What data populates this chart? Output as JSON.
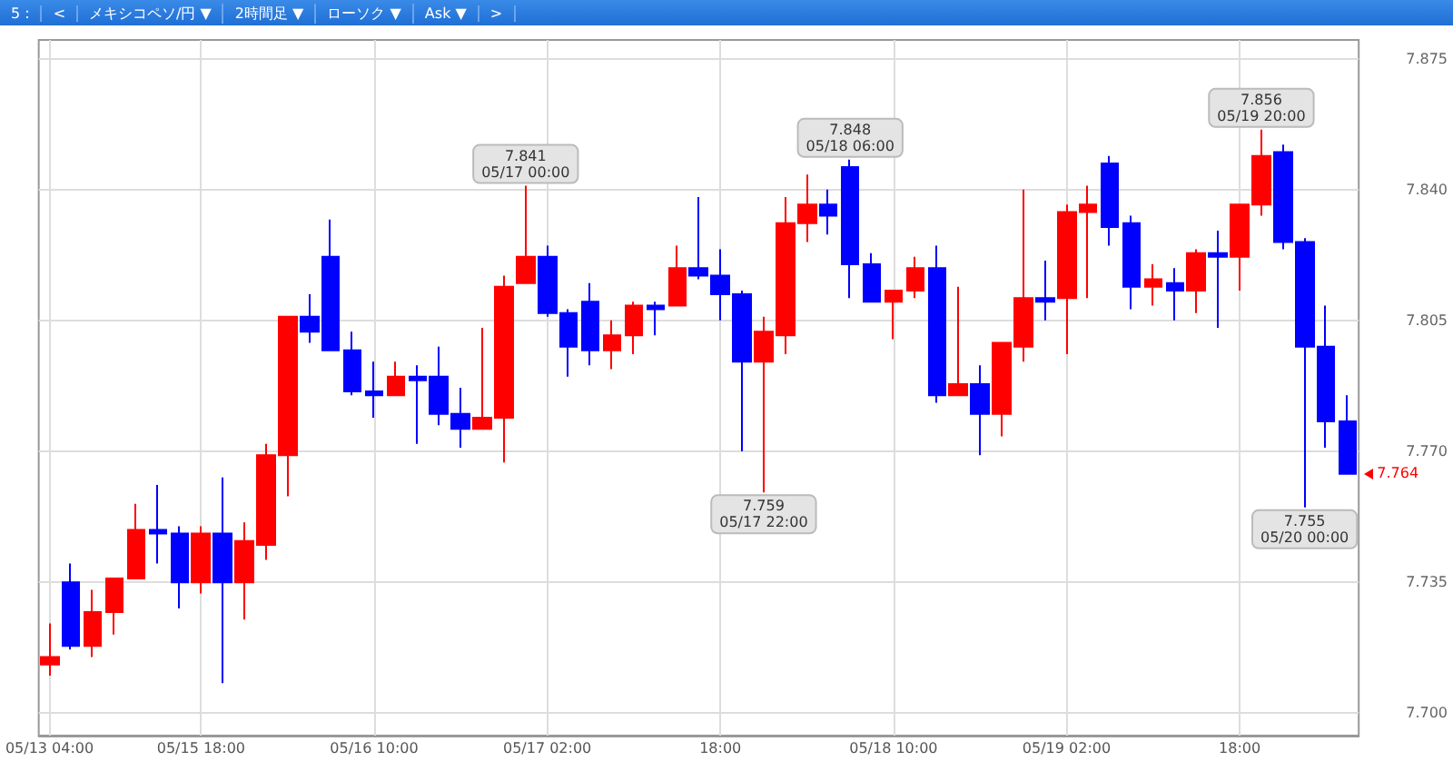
{
  "chart_data": {
    "type": "candlestick",
    "categories": [
      "05/13 04:00",
      null,
      null,
      null,
      null,
      null,
      null,
      "05/15 18:00",
      null,
      null,
      null,
      null,
      null,
      null,
      null,
      "05/16 10:00",
      null,
      null,
      null,
      null,
      null,
      null,
      null,
      "05/17 02:00",
      null,
      null,
      null,
      null,
      null,
      null,
      null,
      "18:00",
      null,
      null,
      null,
      null,
      null,
      null,
      null,
      "05/18 10:00",
      null,
      null,
      null,
      null,
      null,
      null,
      null,
      "05/19 02:00",
      null,
      null,
      null,
      null,
      null,
      null,
      null,
      "18:00",
      null,
      null,
      null,
      null,
      null
    ],
    "ohlc": [
      [
        7.713,
        7.724,
        7.71,
        7.715
      ],
      [
        7.735,
        7.74,
        7.717,
        7.718
      ],
      [
        7.718,
        7.733,
        7.715,
        7.727
      ],
      [
        7.727,
        7.736,
        7.721,
        7.736
      ],
      [
        7.736,
        7.756,
        7.736,
        7.749
      ],
      [
        7.749,
        7.761,
        7.74,
        7.748
      ],
      [
        7.748,
        7.75,
        7.728,
        7.735
      ],
      [
        7.735,
        7.75,
        7.732,
        7.748
      ],
      [
        7.748,
        7.763,
        7.708,
        7.735
      ],
      [
        7.735,
        7.751,
        7.725,
        7.746
      ],
      [
        7.745,
        7.772,
        7.741,
        7.769
      ],
      [
        7.769,
        7.806,
        7.758,
        7.806
      ],
      [
        7.806,
        7.812,
        7.799,
        7.802
      ],
      [
        7.822,
        7.832,
        7.797,
        7.797
      ],
      [
        7.797,
        7.802,
        7.785,
        7.786
      ],
      [
        7.786,
        7.794,
        7.779,
        7.785
      ],
      [
        7.785,
        7.794,
        7.785,
        7.79
      ],
      [
        7.79,
        7.793,
        7.772,
        7.789
      ],
      [
        7.79,
        7.798,
        7.777,
        7.78
      ],
      [
        7.78,
        7.787,
        7.771,
        7.776
      ],
      [
        7.776,
        7.803,
        7.776,
        7.779
      ],
      [
        7.779,
        7.817,
        7.767,
        7.814
      ],
      [
        7.815,
        7.841,
        7.815,
        7.822
      ],
      [
        7.822,
        7.825,
        7.806,
        7.807
      ],
      [
        7.807,
        7.808,
        7.79,
        7.798
      ],
      [
        7.81,
        7.815,
        7.793,
        7.797
      ],
      [
        7.797,
        7.805,
        7.792,
        7.801
      ],
      [
        7.801,
        7.81,
        7.796,
        7.809
      ],
      [
        7.809,
        7.81,
        7.801,
        7.808
      ],
      [
        7.809,
        7.825,
        7.809,
        7.819
      ],
      [
        7.819,
        7.838,
        7.816,
        7.817
      ],
      [
        7.817,
        7.824,
        7.805,
        7.812
      ],
      [
        7.812,
        7.813,
        7.77,
        7.794
      ],
      [
        7.794,
        7.806,
        7.759,
        7.802
      ],
      [
        7.801,
        7.838,
        7.796,
        7.831
      ],
      [
        7.831,
        7.844,
        7.826,
        7.836
      ],
      [
        7.836,
        7.84,
        7.828,
        7.833
      ],
      [
        7.846,
        7.848,
        7.811,
        7.82
      ],
      [
        7.82,
        7.823,
        7.81,
        7.81
      ],
      [
        7.81,
        7.813,
        7.8,
        7.813
      ],
      [
        7.813,
        7.822,
        7.811,
        7.819
      ],
      [
        7.819,
        7.825,
        7.783,
        7.785
      ],
      [
        7.785,
        7.814,
        7.785,
        7.788
      ],
      [
        7.788,
        7.793,
        7.769,
        7.78
      ],
      [
        7.78,
        7.799,
        7.774,
        7.799
      ],
      [
        7.798,
        7.84,
        7.794,
        7.811
      ],
      [
        7.811,
        7.821,
        7.805,
        7.81
      ],
      [
        7.811,
        7.836,
        7.796,
        7.834
      ],
      [
        7.834,
        7.841,
        7.811,
        7.836
      ],
      [
        7.847,
        7.849,
        7.825,
        7.83
      ],
      [
        7.831,
        7.833,
        7.808,
        7.814
      ],
      [
        7.814,
        7.82,
        7.809,
        7.816
      ],
      [
        7.815,
        7.819,
        7.805,
        7.813
      ],
      [
        7.813,
        7.824,
        7.807,
        7.823
      ],
      [
        7.823,
        7.829,
        7.803,
        7.822
      ],
      [
        7.822,
        7.836,
        7.813,
        7.836
      ],
      [
        7.836,
        7.856,
        7.833,
        7.849
      ],
      [
        7.85,
        7.852,
        7.824,
        7.826
      ],
      [
        7.826,
        7.827,
        7.755,
        7.798
      ],
      [
        7.798,
        7.809,
        7.771,
        7.778
      ],
      [
        7.778,
        7.785,
        7.764,
        7.764
      ]
    ],
    "colors": [
      "#ff0000",
      "#0000ff",
      "#ff0000",
      "#ff0000",
      "#ff0000",
      "#0000ff",
      "#0000ff",
      "#ff0000",
      "#0000ff",
      "#ff0000",
      "#ff0000",
      "#ff0000",
      "#0000ff",
      "#0000ff",
      "#0000ff",
      "#0000ff",
      "#ff0000",
      "#0000ff",
      "#0000ff",
      "#0000ff",
      "#ff0000",
      "#ff0000",
      "#ff0000",
      "#0000ff",
      "#0000ff",
      "#0000ff",
      "#ff0000",
      "#ff0000",
      "#0000ff",
      "#ff0000",
      "#0000ff",
      "#0000ff",
      "#0000ff",
      "#ff0000",
      "#ff0000",
      "#ff0000",
      "#0000ff",
      "#0000ff",
      "#0000ff",
      "#ff0000",
      "#ff0000",
      "#0000ff",
      "#ff0000",
      "#0000ff",
      "#ff0000",
      "#ff0000",
      "#0000ff",
      "#ff0000",
      "#ff0000",
      "#0000ff",
      "#0000ff",
      "#ff0000",
      "#0000ff",
      "#ff0000",
      "#0000ff",
      "#ff0000",
      "#ff0000",
      "#0000ff",
      "#0000ff",
      "#0000ff",
      "#0000ff"
    ],
    "ylim": [
      7.694,
      7.88
    ],
    "yticks": [
      {
        "value": 7.7,
        "label": "7.700"
      },
      7.735,
      {
        "value": 7.77,
        "label": "7.770"
      },
      7.805,
      {
        "value": 7.84,
        "label": "7.840"
      },
      7.875
    ],
    "grid": true,
    "annotations": [
      "7.764",
      "5 :",
      "<",
      "メキシコペソ/円 ▼",
      "2時間足 ▼",
      "ローソク ▼",
      "Ask ▼",
      ">",
      {
        "text": "7.841\n05/17 00:00",
        "y": 7.841
      },
      {
        "text": "7.759\n05/17 22:00",
        "y": 7.759
      },
      {
        "text": "7.848\n05/18 06:00",
        "y": 7.848
      },
      {
        "text": "7.856\n05/19 20:00",
        "y": 7.856
      },
      {
        "text": "7.755\n05/20 00:00",
        "y": 7.755
      }
    ]
  }
}
